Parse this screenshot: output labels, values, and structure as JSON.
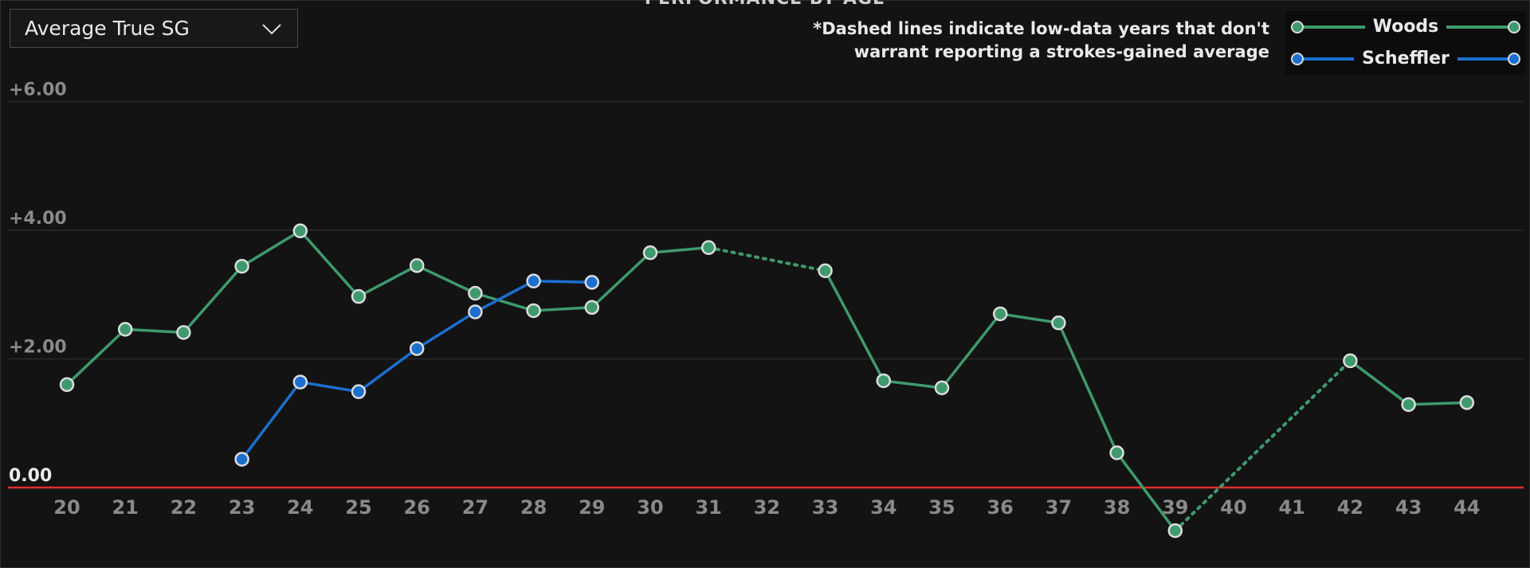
{
  "dropdown": {
    "selected": "Average True SG",
    "icon": "chevron-down-icon"
  },
  "title": "PERFORMANCE BY AGE",
  "note": {
    "line1": "*Dashed lines indicate low-data years that don't",
    "line2": "warrant reporting a strokes-gained average"
  },
  "colors": {
    "background": "#131313",
    "woods": "#3e9a6c",
    "scheffler": "#1b6fd0",
    "zero_line": "#e0302a",
    "grid": "#2a2a2a"
  },
  "chart_data": {
    "type": "line",
    "title": "PERFORMANCE BY AGE",
    "xlabel": "",
    "ylabel": "",
    "categories": [
      "20",
      "21",
      "22",
      "23",
      "24",
      "25",
      "26",
      "27",
      "28",
      "29",
      "30",
      "31",
      "32",
      "33",
      "34",
      "35",
      "36",
      "37",
      "38",
      "39",
      "40",
      "41",
      "42",
      "43",
      "44"
    ],
    "ylim": [
      -0.75,
      6.0
    ],
    "yticks": [
      {
        "value": 6,
        "label": "+6.00"
      },
      {
        "value": 4,
        "label": "+4.00"
      },
      {
        "value": 2,
        "label": "+2.00"
      },
      {
        "value": 0,
        "label": "0.00"
      }
    ],
    "grid": true,
    "legend": "top-right",
    "series": [
      {
        "name": "Woods",
        "color": "#3e9a6c",
        "values": [
          1.6,
          2.46,
          2.41,
          3.44,
          3.99,
          2.97,
          3.45,
          3.02,
          2.75,
          2.8,
          3.65,
          3.73,
          null,
          3.37,
          1.66,
          1.55,
          2.7,
          2.56,
          0.54,
          -0.67,
          null,
          null,
          1.97,
          1.29,
          1.32
        ],
        "dashed_segments": [
          [
            "31",
            "33"
          ],
          [
            "39",
            "42"
          ]
        ]
      },
      {
        "name": "Scheffler",
        "color": "#1b6fd0",
        "values": [
          null,
          null,
          null,
          0.44,
          1.64,
          1.49,
          2.16,
          2.73,
          3.21,
          3.19,
          null,
          null,
          null,
          null,
          null,
          null,
          null,
          null,
          null,
          null,
          null,
          null,
          null,
          null,
          null
        ],
        "dashed_segments": []
      }
    ]
  }
}
